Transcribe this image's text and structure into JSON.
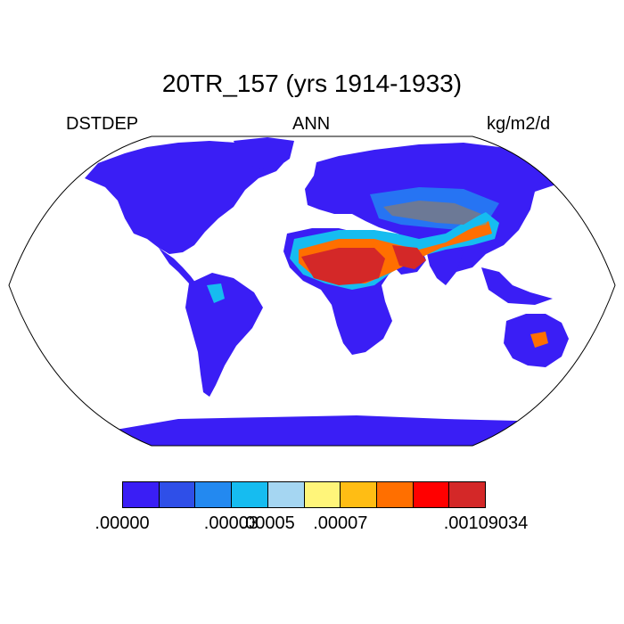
{
  "title": "20TR_157 (yrs 1914-1933)",
  "left_label": "DSTDEP",
  "center_label": "ANN",
  "right_label": "kg/m2/d",
  "colorbar": {
    "colors": [
      "#3a1ef5",
      "#2f4fe8",
      "#2389f0",
      "#16bcf0",
      "#a5d6f2",
      "#fff57a",
      "#ffbd14",
      "#ff6f00",
      "#ff0000",
      "#d42828"
    ],
    "labels": [
      ".00000",
      ".00003",
      ".00005",
      ".00007",
      ".00109034"
    ]
  },
  "map": {
    "projection": "Robinson",
    "land_color_background": "#3a1ef5",
    "ocean_color": "#ffffff"
  }
}
